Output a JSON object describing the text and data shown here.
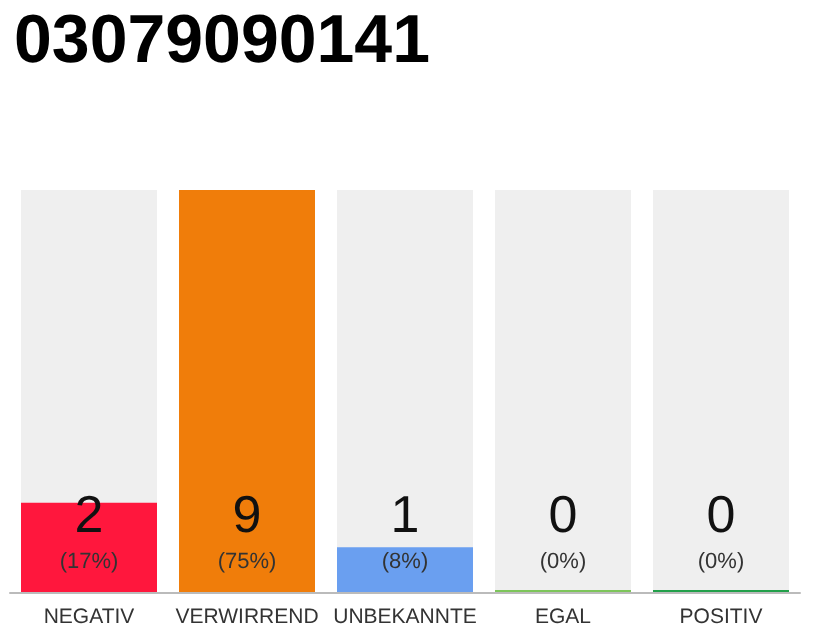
{
  "chart_data": {
    "type": "bar",
    "title": "03079090141",
    "categories": [
      "NEGATIV",
      "VERWIRREND",
      "UNBEKANNTE",
      "EGAL",
      "POSITIV"
    ],
    "values": [
      2,
      9,
      1,
      0,
      0
    ],
    "colors": [
      "#ff173d",
      "#f07d0a",
      "#6a9ff0",
      "#7dc55a",
      "#22a04a"
    ],
    "value_labels": [
      "2",
      "9",
      "1",
      "0",
      "0"
    ],
    "annotations": [
      "(17%)",
      "(75%)",
      "(8%)",
      "(0%)",
      "(0%)"
    ]
  }
}
